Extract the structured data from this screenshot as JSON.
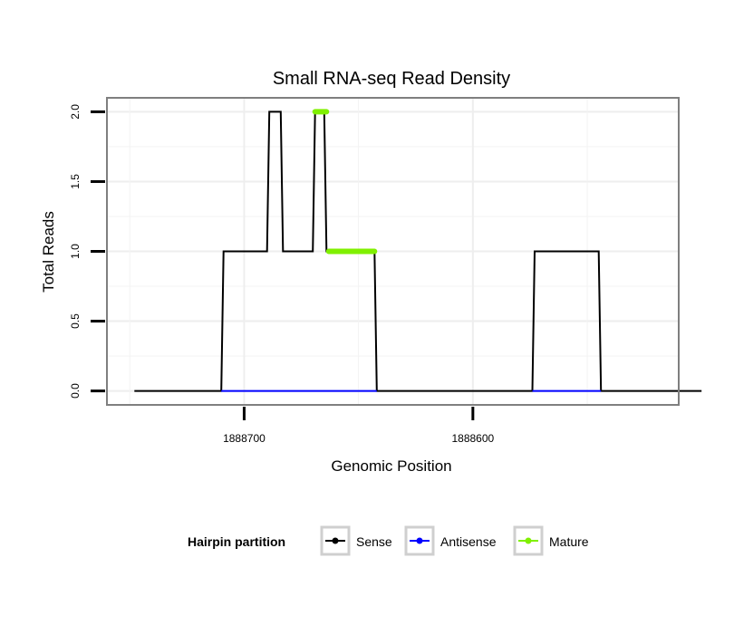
{
  "chart_data": {
    "type": "line",
    "title": "Small RNA-seq Read Density",
    "xlabel": "Genomic Position",
    "ylabel": "Total Reads",
    "x_axis_reversed": true,
    "xlim": [
      1888760,
      1888510
    ],
    "ylim": [
      -0.1,
      2.1
    ],
    "x_ticks": [
      1888700,
      1888600
    ],
    "x_tick_labels": [
      "1888700",
      "1888600"
    ],
    "y_ticks": [
      0,
      0.5,
      1,
      1.5,
      2
    ],
    "y_tick_labels": [
      "0.0",
      "0.5",
      "1.0",
      "1.5",
      "2.0"
    ],
    "grid": true,
    "legend_title": "Hairpin partition",
    "legend_position": "bottom",
    "series": [
      {
        "name": "Sense",
        "color": "#000000",
        "x": [
          1888748,
          1888710,
          1888709,
          1888690,
          1888689,
          1888684,
          1888683,
          1888670,
          1888669,
          1888665,
          1888664,
          1888643,
          1888642,
          1888574,
          1888573,
          1888545,
          1888544,
          1888500
        ],
        "y": [
          0,
          0,
          1,
          1,
          2,
          2,
          1,
          1,
          2,
          2,
          1,
          1,
          0,
          0,
          1,
          1,
          0,
          0
        ]
      },
      {
        "name": "Antisense",
        "color": "#0000ff",
        "x": [
          1888710,
          1888642,
          1888574,
          1888544
        ],
        "y": [
          0,
          0,
          0,
          0
        ],
        "segments": [
          [
            0,
            1
          ],
          [
            2,
            3
          ]
        ]
      },
      {
        "name": "Mature",
        "color": "#80f000",
        "x": [
          1888669,
          1888664,
          1888663,
          1888643
        ],
        "y": [
          2,
          2,
          1,
          1
        ],
        "segments": [
          [
            0,
            1
          ],
          [
            2,
            3
          ]
        ]
      }
    ]
  }
}
